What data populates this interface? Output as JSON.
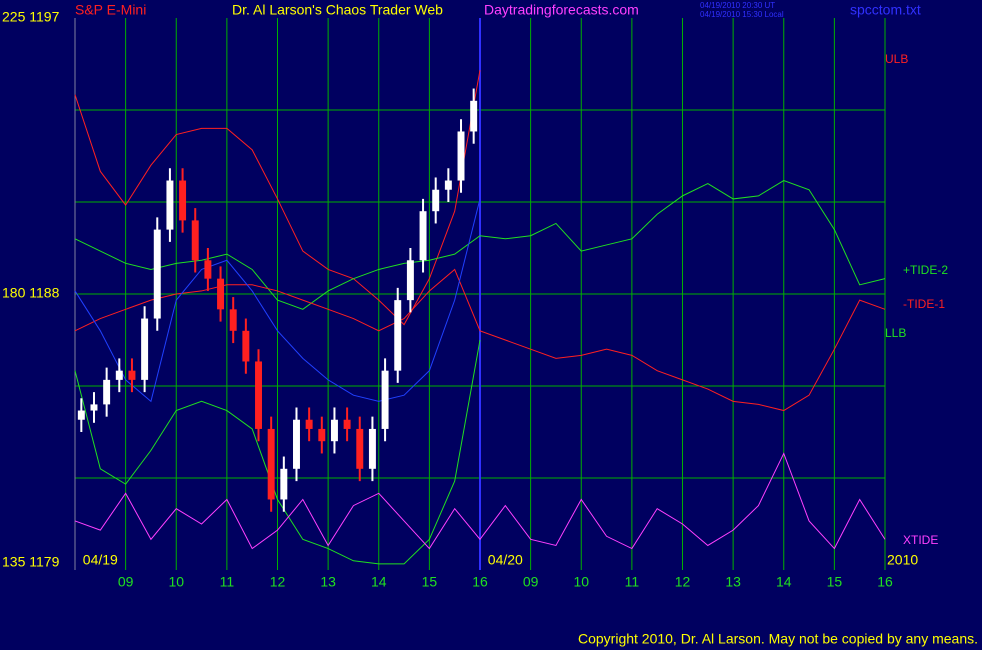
{
  "chart_data": {
    "type": "candlestick",
    "title": "Dr. Al Larson's Chaos Trader Web",
    "symbol": "S&P E-Mini",
    "site": "Daytradingforecasts.com",
    "timestamp_ut": "04/19/2010 20:30 UT",
    "timestamp_local": "04/19/2010 15:30 Local",
    "file": "spcctom.txt",
    "copyright": "Copyright 2010, Dr. Al Larson. May not be copied by any means.",
    "dates": [
      {
        "x": 0.5,
        "label": "04/19"
      },
      {
        "x": 8.5,
        "label": "04/20"
      },
      {
        "x": 16,
        "label": "2010"
      }
    ],
    "xlim": [
      0,
      16
    ],
    "xticks": [
      {
        "value": 1,
        "label": "09"
      },
      {
        "value": 2,
        "label": "10"
      },
      {
        "value": 3,
        "label": "11"
      },
      {
        "value": 4,
        "label": "12"
      },
      {
        "value": 5,
        "label": "13"
      },
      {
        "value": 6,
        "label": "14"
      },
      {
        "value": 7,
        "label": "15"
      },
      {
        "value": 8,
        "label": "16"
      },
      {
        "value": 9,
        "label": "09"
      },
      {
        "value": 10,
        "label": "10"
      },
      {
        "value": 11,
        "label": "11"
      },
      {
        "value": 12,
        "label": "12"
      },
      {
        "value": 13,
        "label": "13"
      },
      {
        "value": 14,
        "label": "14"
      },
      {
        "value": 15,
        "label": "15"
      },
      {
        "value": 16,
        "label": "16"
      }
    ],
    "divider": 8,
    "ylim": [
      1179,
      1197
    ],
    "yticks": [
      {
        "value": 1179,
        "label": "135 1179"
      },
      {
        "value": 1188,
        "label": "180 1188"
      },
      {
        "value": 1197,
        "label": "225 1197"
      }
    ],
    "ygrid": [
      1182,
      1185,
      1188,
      1191,
      1194
    ],
    "grid_color": "#00b000",
    "divider_color": "#3030ff",
    "up_color": "#ffffff",
    "down_color": "#ff2020",
    "bars": {
      "x": [
        0.125,
        0.375,
        0.625,
        0.875,
        1.125,
        1.375,
        1.625,
        1.875,
        2.125,
        2.375,
        2.625,
        2.875,
        3.125,
        3.375,
        3.625,
        3.875,
        4.125,
        4.375,
        4.625,
        4.875,
        5.125,
        5.375,
        5.625,
        5.875,
        6.125,
        6.375,
        6.625,
        6.875,
        7.125,
        7.375,
        7.625,
        7.875
      ],
      "open": [
        1183.9,
        1184.2,
        1184.4,
        1185.2,
        1185.5,
        1185.2,
        1187.2,
        1190.1,
        1191.7,
        1190.4,
        1189.1,
        1188.5,
        1187.5,
        1186.8,
        1185.8,
        1183.6,
        1181.3,
        1182.3,
        1183.9,
        1183.6,
        1183.2,
        1183.9,
        1183.6,
        1182.3,
        1183.6,
        1185.5,
        1187.8,
        1189.1,
        1190.7,
        1191.4,
        1191.7,
        1193.3
      ],
      "high": [
        1184.6,
        1184.8,
        1185.6,
        1185.9,
        1185.9,
        1187.6,
        1190.5,
        1192.1,
        1192.1,
        1190.8,
        1189.5,
        1188.9,
        1187.9,
        1187.2,
        1186.2,
        1184.0,
        1182.7,
        1184.3,
        1184.3,
        1184.0,
        1184.3,
        1184.3,
        1184.0,
        1184.0,
        1185.9,
        1188.2,
        1189.5,
        1191.1,
        1191.8,
        1192.1,
        1193.7,
        1194.7
      ],
      "low": [
        1183.5,
        1183.8,
        1184.0,
        1184.8,
        1184.8,
        1184.8,
        1186.8,
        1189.7,
        1190.0,
        1188.7,
        1188.1,
        1187.1,
        1186.4,
        1185.4,
        1183.2,
        1180.9,
        1180.9,
        1181.9,
        1183.2,
        1182.8,
        1182.8,
        1183.2,
        1181.9,
        1181.9,
        1183.2,
        1185.1,
        1187.4,
        1188.7,
        1190.3,
        1191.0,
        1191.3,
        1192.9
      ],
      "close": [
        1184.2,
        1184.4,
        1185.2,
        1185.5,
        1185.2,
        1187.2,
        1190.1,
        1191.7,
        1190.4,
        1189.1,
        1188.5,
        1187.5,
        1186.8,
        1185.8,
        1183.6,
        1181.3,
        1182.3,
        1183.9,
        1183.6,
        1183.2,
        1183.9,
        1183.6,
        1182.3,
        1183.6,
        1185.5,
        1187.8,
        1189.1,
        1190.7,
        1191.4,
        1191.7,
        1193.3,
        1194.3
      ]
    },
    "x": [
      0,
      0.5,
      1,
      1.5,
      2,
      2.5,
      3,
      3.5,
      4,
      4.5,
      5,
      5.5,
      6,
      6.5,
      7,
      7.5,
      8,
      8.5,
      9,
      9.5,
      10,
      10.5,
      11,
      11.5,
      12,
      12.5,
      13,
      13.5,
      14,
      14.5,
      15,
      15.5,
      16
    ],
    "series": [
      {
        "name": "ULB",
        "color": "#ff2020",
        "values": [
          1194.5,
          1192.0,
          1190.9,
          1192.2,
          1193.2,
          1193.4,
          1193.4,
          1192.7,
          1191.1,
          1189.4,
          1188.8,
          1188.5,
          1187.8,
          1187.0,
          1188.5,
          1190.7,
          1195.3,
          null,
          null,
          null,
          null,
          null,
          null,
          null,
          null,
          null,
          null,
          null,
          null,
          null,
          null,
          null,
          null
        ]
      },
      {
        "name": "+TIDE-2",
        "color": "#20e020",
        "values": [
          1189.8,
          1189.4,
          1189.0,
          1188.8,
          1189.0,
          1189.1,
          1189.3,
          1188.8,
          1187.8,
          1187.5,
          1188.1,
          1188.5,
          1188.8,
          1189.0,
          1189.1,
          1189.3,
          1189.9,
          1189.8,
          1189.9,
          1190.3,
          1189.4,
          1189.6,
          1189.8,
          1190.6,
          1191.2,
          1191.6,
          1191.1,
          1191.2,
          1191.7,
          1191.4,
          1190.1,
          1188.3,
          1188.5
        ]
      },
      {
        "name": "-TIDE-1",
        "color": "#ff2020",
        "values": [
          1186.8,
          1187.2,
          1187.5,
          1187.8,
          1188.0,
          1188.1,
          1188.3,
          1188.3,
          1188.1,
          1187.8,
          1187.5,
          1187.2,
          1186.8,
          1187.2,
          1188.1,
          1188.8,
          1186.8,
          1186.5,
          1186.2,
          1185.9,
          1186.0,
          1186.2,
          1186.0,
          1185.5,
          1185.2,
          1184.9,
          1184.5,
          1184.4,
          1184.2,
          1184.7,
          1186.2,
          1187.8,
          1187.5
        ]
      },
      {
        "name": "LLB",
        "color": "#20e020",
        "values": [
          1185.5,
          1182.3,
          1181.8,
          1182.9,
          1184.2,
          1184.5,
          1184.2,
          1183.6,
          1181.3,
          1180.0,
          1179.7,
          1179.3,
          1179.2,
          1179.2,
          1180.0,
          1181.9,
          1186.5,
          null,
          null,
          null,
          null,
          null,
          null,
          null,
          null,
          null,
          null,
          null,
          null,
          null,
          null,
          null,
          null
        ]
      },
      {
        "name": "XTIDE",
        "color": "#ff40ff",
        "values": [
          1180.6,
          1180.3,
          1181.5,
          1180.0,
          1181.0,
          1180.5,
          1181.3,
          1179.7,
          1180.3,
          1181.3,
          1179.8,
          1181.1,
          1181.5,
          1180.6,
          1179.7,
          1181.0,
          1180.0,
          1181.1,
          1180.0,
          1179.8,
          1181.3,
          1180.1,
          1179.7,
          1181.0,
          1180.5,
          1179.8,
          1180.3,
          1181.1,
          1182.8,
          1180.6,
          1179.7,
          1181.3,
          1180.0
        ]
      },
      {
        "color": "#2040ff",
        "values": [
          1188.1,
          1186.8,
          1185.2,
          1184.5,
          1187.8,
          1188.8,
          1189.1,
          1188.1,
          1186.8,
          1185.9,
          1185.2,
          1184.7,
          1184.5,
          1184.7,
          1185.5,
          1187.8,
          1191.1,
          null,
          null,
          null,
          null,
          null,
          null,
          null,
          null,
          null,
          null,
          null,
          null,
          null,
          null,
          null,
          null
        ]
      }
    ]
  }
}
